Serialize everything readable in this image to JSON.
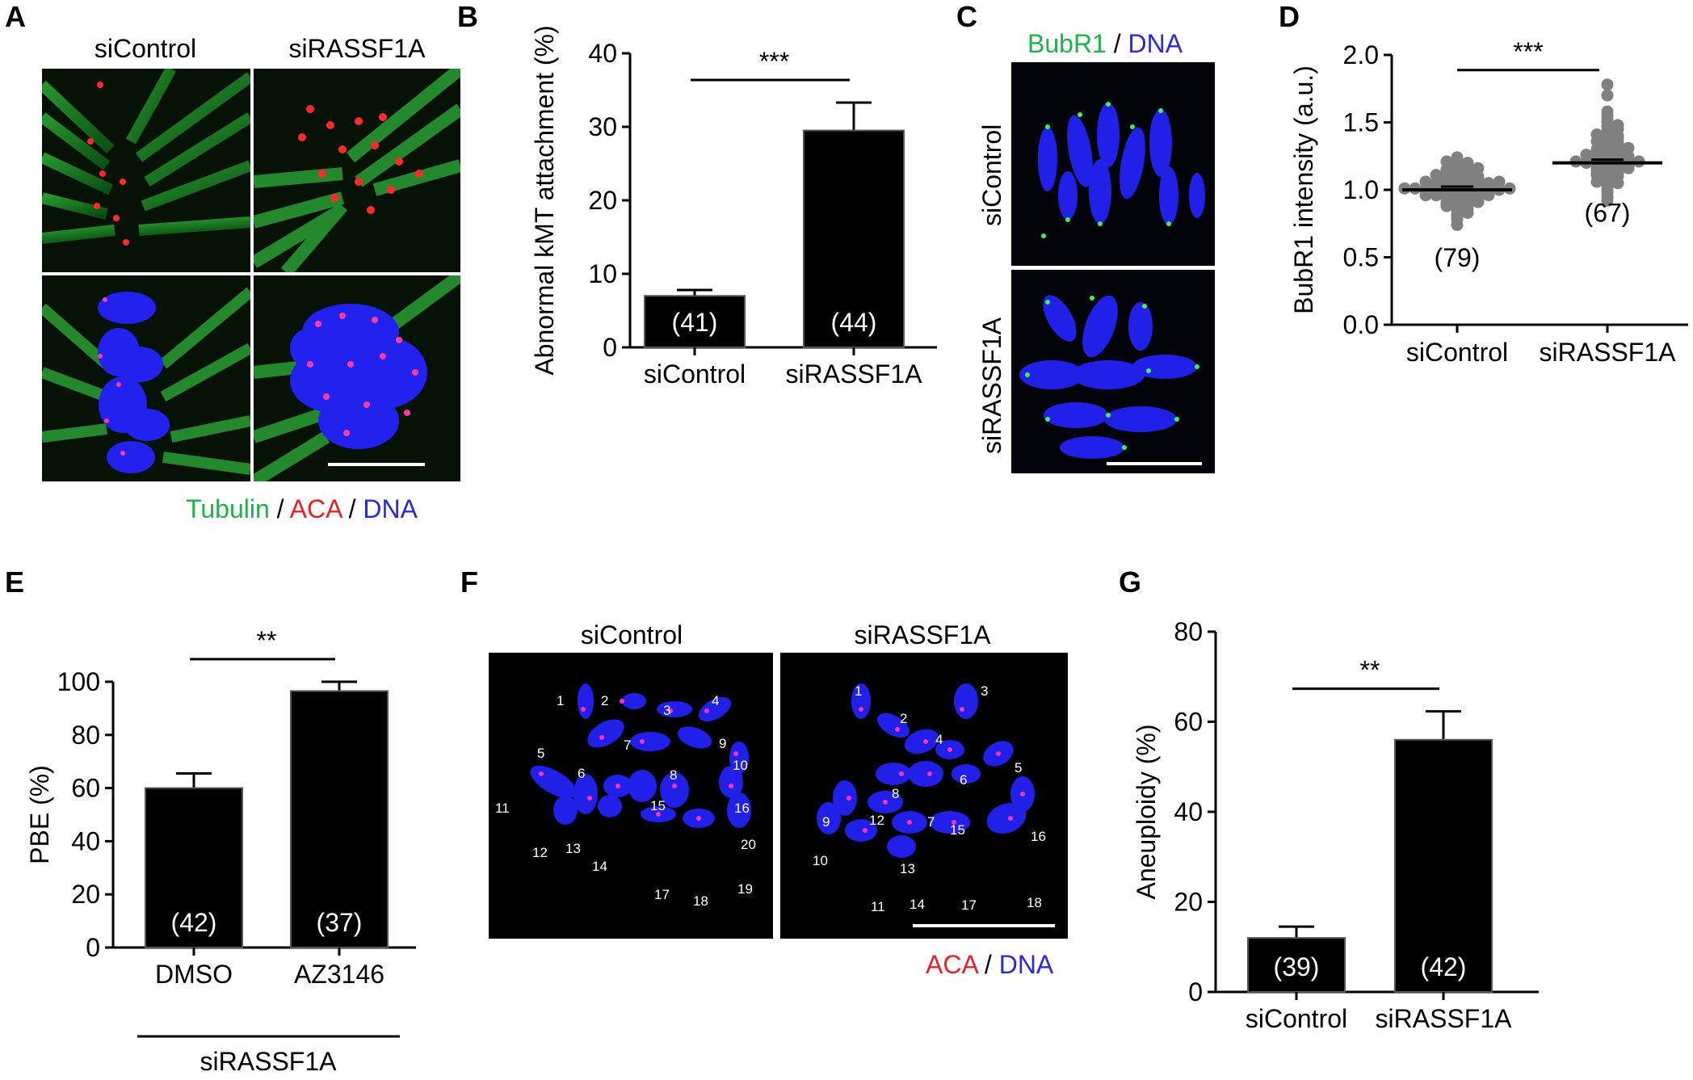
{
  "panels": {
    "A": {
      "letter": "A",
      "col_labels": [
        "siControl",
        "siRASSF1A"
      ],
      "legend": {
        "p1": "Tubulin",
        "s1": "/",
        "p2": "ACA",
        "s2": "/",
        "p3": "DNA"
      }
    },
    "B": {
      "letter": "B"
    },
    "C": {
      "letter": "C",
      "legend": {
        "p1": "BubR1",
        "s1": "/",
        "p2": "DNA"
      },
      "row_labels": [
        "siControl",
        "siRASSF1A"
      ]
    },
    "D": {
      "letter": "D"
    },
    "E": {
      "letter": "E",
      "group_label": "siRASSF1A"
    },
    "F": {
      "letter": "F",
      "col_labels": [
        "siControl",
        "siRASSF1A"
      ],
      "legend": {
        "p1": "ACA",
        "s1": "/",
        "p2": "DNA"
      },
      "left_numbers": [
        "1",
        "2",
        "3",
        "4",
        "5",
        "6",
        "7",
        "8",
        "9",
        "10",
        "11",
        "12",
        "13",
        "14",
        "15",
        "16",
        "17",
        "18",
        "19",
        "20"
      ],
      "right_numbers": [
        "1",
        "2",
        "3",
        "4",
        "5",
        "6",
        "7",
        "8",
        "9",
        "10",
        "11",
        "12",
        "13",
        "14",
        "15",
        "16",
        "17",
        "18"
      ]
    },
    "G": {
      "letter": "G"
    }
  },
  "colors": {
    "green": "#22b04b",
    "red": "#e8202a",
    "blue": "#2a2ad6",
    "bar": "#000000",
    "dot": "#808080"
  },
  "chart_data": [
    {
      "panel": "B",
      "type": "bar",
      "categories": [
        "siControl",
        "siRASSF1A"
      ],
      "values": [
        7,
        29.5
      ],
      "errors": [
        0.8,
        3.8
      ],
      "n_labels": [
        "(41)",
        "(44)"
      ],
      "ylabel": "Abnormal kMT attachment (%)",
      "ylim": [
        0,
        40
      ],
      "yticks": [
        0,
        10,
        20,
        30,
        40
      ],
      "significance": "***"
    },
    {
      "panel": "D",
      "type": "scatter",
      "categories": [
        "siControl",
        "siRASSF1A"
      ],
      "means": [
        1.0,
        1.2
      ],
      "n_labels": [
        "(79)",
        "(67)"
      ],
      "ylabel": "BubR1 intensity (a.u.)",
      "ylim": [
        0,
        2.0
      ],
      "yticks": [
        "0.0",
        "0.5",
        "1.0",
        "1.5",
        "2.0"
      ],
      "significance": "***",
      "series": [
        {
          "name": "siControl",
          "values": [
            0.74,
            0.78,
            0.8,
            0.82,
            0.83,
            0.85,
            0.86,
            0.87,
            0.88,
            0.88,
            0.89,
            0.9,
            0.9,
            0.91,
            0.92,
            0.92,
            0.93,
            0.93,
            0.94,
            0.94,
            0.95,
            0.95,
            0.96,
            0.96,
            0.96,
            0.97,
            0.97,
            0.97,
            0.98,
            0.98,
            0.98,
            0.99,
            0.99,
            0.99,
            1.0,
            1.0,
            1.0,
            1.0,
            1.0,
            1.01,
            1.01,
            1.01,
            1.02,
            1.02,
            1.02,
            1.03,
            1.03,
            1.03,
            1.04,
            1.04,
            1.04,
            1.05,
            1.05,
            1.05,
            1.06,
            1.06,
            1.07,
            1.07,
            1.08,
            1.08,
            1.09,
            1.09,
            1.1,
            1.1,
            1.11,
            1.12,
            1.12,
            1.13,
            1.14,
            1.15,
            1.15,
            1.16,
            1.17,
            1.18,
            1.19,
            1.2,
            1.21,
            1.22,
            1.24
          ]
        },
        {
          "name": "siRASSF1A",
          "values": [
            0.92,
            0.95,
            0.98,
            1.0,
            1.02,
            1.04,
            1.05,
            1.06,
            1.08,
            1.09,
            1.1,
            1.11,
            1.12,
            1.13,
            1.13,
            1.14,
            1.15,
            1.15,
            1.16,
            1.17,
            1.17,
            1.18,
            1.18,
            1.19,
            1.19,
            1.2,
            1.2,
            1.2,
            1.21,
            1.21,
            1.22,
            1.22,
            1.23,
            1.23,
            1.24,
            1.24,
            1.25,
            1.25,
            1.26,
            1.27,
            1.27,
            1.28,
            1.29,
            1.3,
            1.3,
            1.31,
            1.32,
            1.33,
            1.34,
            1.35,
            1.36,
            1.37,
            1.38,
            1.39,
            1.4,
            1.41,
            1.42,
            1.44,
            1.45,
            1.47,
            1.48,
            1.5,
            1.52,
            1.55,
            1.58,
            1.7,
            1.78
          ]
        }
      ]
    },
    {
      "panel": "E",
      "type": "bar",
      "categories": [
        "DMSO",
        "AZ3146"
      ],
      "values": [
        60,
        96.5
      ],
      "errors": [
        5.5,
        3.5
      ],
      "n_labels": [
        "(42)",
        "(37)"
      ],
      "ylabel": "PBE (%)",
      "ylim": [
        0,
        100
      ],
      "yticks": [
        0,
        20,
        40,
        60,
        80,
        100
      ],
      "significance": "**"
    },
    {
      "panel": "G",
      "type": "bar",
      "categories": [
        "siControl",
        "siRASSF1A"
      ],
      "values": [
        12,
        56
      ],
      "errors": [
        2.5,
        6.3
      ],
      "n_labels": [
        "(39)",
        "(42)"
      ],
      "ylabel": "Aneuploidy (%)",
      "ylim": [
        0,
        80
      ],
      "yticks": [
        0,
        20,
        40,
        60,
        80
      ],
      "significance": "**"
    }
  ]
}
